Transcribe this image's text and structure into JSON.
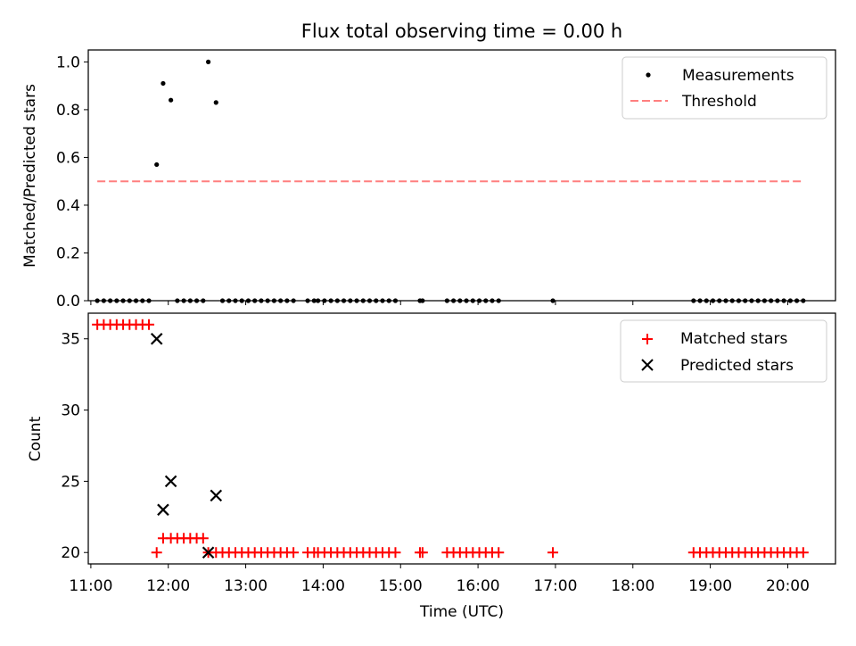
{
  "title": "Flux total observing time = 0.00 h",
  "xlabel": "Time (UTC)",
  "x_ticks": [
    "11:00",
    "12:00",
    "13:00",
    "14:00",
    "15:00",
    "16:00",
    "17:00",
    "18:00",
    "19:00",
    "20:00"
  ],
  "colors": {
    "measurements": "#000000",
    "threshold": "#ff7f7f",
    "matched": "#ff0000",
    "predicted": "#000000"
  },
  "chart_data": [
    {
      "type": "scatter",
      "ylabel": "Matched/Predicted stars",
      "xlim": [
        "10:58",
        "20:37"
      ],
      "ylim": [
        0,
        1.05
      ],
      "y_ticks": [
        "0.0",
        "0.2",
        "0.4",
        "0.6",
        "0.8",
        "1.0"
      ],
      "legend_position": "top-right",
      "series": [
        {
          "name": "Measurements",
          "marker": "dot",
          "points": [
            [
              "11:05",
              0
            ],
            [
              "11:10",
              0
            ],
            [
              "11:15",
              0
            ],
            [
              "11:20",
              0
            ],
            [
              "11:25",
              0
            ],
            [
              "11:30",
              0
            ],
            [
              "11:35",
              0
            ],
            [
              "11:40",
              0
            ],
            [
              "11:45",
              0
            ],
            [
              "11:51",
              0.57
            ],
            [
              "11:56",
              0.91
            ],
            [
              "12:02",
              0.84
            ],
            [
              "12:07",
              0
            ],
            [
              "12:12",
              0
            ],
            [
              "12:17",
              0
            ],
            [
              "12:22",
              0
            ],
            [
              "12:27",
              0
            ],
            [
              "12:31",
              1.0
            ],
            [
              "12:37",
              0.83
            ],
            [
              "12:42",
              0
            ],
            [
              "12:47",
              0
            ],
            [
              "12:52",
              0
            ],
            [
              "12:57",
              0
            ],
            [
              "13:02",
              0
            ],
            [
              "13:07",
              0
            ],
            [
              "13:12",
              0
            ],
            [
              "13:17",
              0
            ],
            [
              "13:22",
              0
            ],
            [
              "13:27",
              0
            ],
            [
              "13:32",
              0
            ],
            [
              "13:37",
              0
            ],
            [
              "13:48",
              0
            ],
            [
              "13:53",
              0
            ],
            [
              "13:56",
              0
            ],
            [
              "14:01",
              0
            ],
            [
              "14:06",
              0
            ],
            [
              "14:11",
              0
            ],
            [
              "14:16",
              0
            ],
            [
              "14:21",
              0
            ],
            [
              "14:26",
              0
            ],
            [
              "14:31",
              0
            ],
            [
              "14:36",
              0
            ],
            [
              "14:41",
              0
            ],
            [
              "14:46",
              0
            ],
            [
              "14:51",
              0
            ],
            [
              "14:56",
              0
            ],
            [
              "15:15",
              0
            ],
            [
              "15:17",
              0
            ],
            [
              "15:36",
              0
            ],
            [
              "15:41",
              0
            ],
            [
              "15:46",
              0
            ],
            [
              "15:51",
              0
            ],
            [
              "15:56",
              0
            ],
            [
              "16:01",
              0
            ],
            [
              "16:06",
              0
            ],
            [
              "16:11",
              0
            ],
            [
              "16:16",
              0
            ],
            [
              "16:58",
              0
            ],
            [
              "18:47",
              0
            ],
            [
              "18:52",
              0
            ],
            [
              "18:57",
              0
            ],
            [
              "19:02",
              0
            ],
            [
              "19:07",
              0
            ],
            [
              "19:12",
              0
            ],
            [
              "19:17",
              0
            ],
            [
              "19:22",
              0
            ],
            [
              "19:27",
              0
            ],
            [
              "19:32",
              0
            ],
            [
              "19:37",
              0
            ],
            [
              "19:42",
              0
            ],
            [
              "19:47",
              0
            ],
            [
              "19:52",
              0
            ],
            [
              "19:57",
              0
            ],
            [
              "20:02",
              0
            ],
            [
              "20:07",
              0
            ],
            [
              "20:12",
              0
            ]
          ]
        },
        {
          "name": "Threshold",
          "type": "line",
          "style": "dashed",
          "points": [
            [
              "11:05",
              0.5
            ],
            [
              "20:12",
              0.5
            ]
          ]
        }
      ]
    },
    {
      "type": "scatter",
      "ylabel": "Count",
      "xlim": [
        "10:58",
        "20:37"
      ],
      "ylim": [
        19.2,
        36.8
      ],
      "y_ticks": [
        "20",
        "25",
        "30",
        "35"
      ],
      "legend_position": "top-right",
      "series": [
        {
          "name": "Matched stars",
          "marker": "plus",
          "points": [
            [
              "11:05",
              36
            ],
            [
              "11:10",
              36
            ],
            [
              "11:15",
              36
            ],
            [
              "11:20",
              36
            ],
            [
              "11:25",
              36
            ],
            [
              "11:30",
              36
            ],
            [
              "11:35",
              36
            ],
            [
              "11:40",
              36
            ],
            [
              "11:45",
              36
            ],
            [
              "11:51",
              20
            ],
            [
              "11:56",
              21
            ],
            [
              "12:02",
              21
            ],
            [
              "12:07",
              21
            ],
            [
              "12:12",
              21
            ],
            [
              "12:17",
              21
            ],
            [
              "12:22",
              21
            ],
            [
              "12:27",
              21
            ],
            [
              "12:31",
              20
            ],
            [
              "12:37",
              20
            ],
            [
              "12:42",
              20
            ],
            [
              "12:47",
              20
            ],
            [
              "12:52",
              20
            ],
            [
              "12:57",
              20
            ],
            [
              "13:02",
              20
            ],
            [
              "13:07",
              20
            ],
            [
              "13:12",
              20
            ],
            [
              "13:17",
              20
            ],
            [
              "13:22",
              20
            ],
            [
              "13:27",
              20
            ],
            [
              "13:32",
              20
            ],
            [
              "13:37",
              20
            ],
            [
              "13:48",
              20
            ],
            [
              "13:53",
              20
            ],
            [
              "13:56",
              20
            ],
            [
              "14:01",
              20
            ],
            [
              "14:06",
              20
            ],
            [
              "14:11",
              20
            ],
            [
              "14:16",
              20
            ],
            [
              "14:21",
              20
            ],
            [
              "14:26",
              20
            ],
            [
              "14:31",
              20
            ],
            [
              "14:36",
              20
            ],
            [
              "14:41",
              20
            ],
            [
              "14:46",
              20
            ],
            [
              "14:51",
              20
            ],
            [
              "14:56",
              20
            ],
            [
              "15:15",
              20
            ],
            [
              "15:17",
              20
            ],
            [
              "15:36",
              20
            ],
            [
              "15:41",
              20
            ],
            [
              "15:46",
              20
            ],
            [
              "15:51",
              20
            ],
            [
              "15:56",
              20
            ],
            [
              "16:01",
              20
            ],
            [
              "16:06",
              20
            ],
            [
              "16:11",
              20
            ],
            [
              "16:16",
              20
            ],
            [
              "16:58",
              20
            ],
            [
              "18:47",
              20
            ],
            [
              "18:52",
              20
            ],
            [
              "18:57",
              20
            ],
            [
              "19:02",
              20
            ],
            [
              "19:07",
              20
            ],
            [
              "19:12",
              20
            ],
            [
              "19:17",
              20
            ],
            [
              "19:22",
              20
            ],
            [
              "19:27",
              20
            ],
            [
              "19:32",
              20
            ],
            [
              "19:37",
              20
            ],
            [
              "19:42",
              20
            ],
            [
              "19:47",
              20
            ],
            [
              "19:52",
              20
            ],
            [
              "19:57",
              20
            ],
            [
              "20:02",
              20
            ],
            [
              "20:07",
              20
            ],
            [
              "20:12",
              20
            ]
          ]
        },
        {
          "name": "Predicted stars",
          "marker": "x",
          "points": [
            [
              "11:51",
              35
            ],
            [
              "11:56",
              23
            ],
            [
              "12:02",
              25
            ],
            [
              "12:31",
              20
            ],
            [
              "12:37",
              24
            ]
          ]
        }
      ]
    }
  ]
}
